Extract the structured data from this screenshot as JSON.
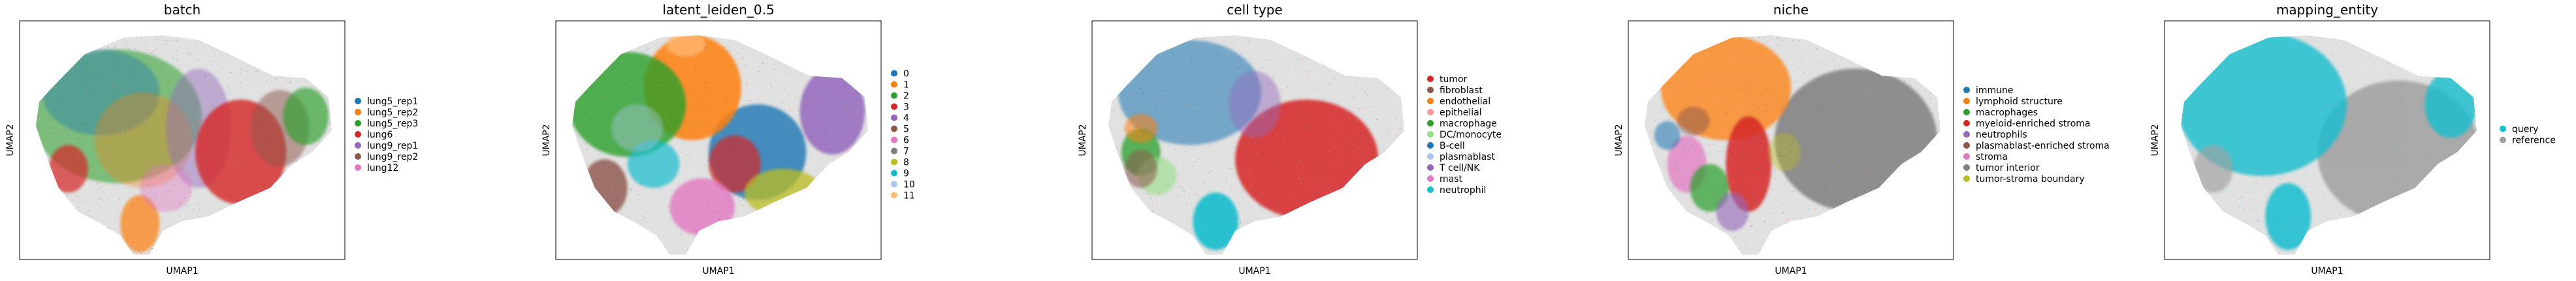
{
  "chart_data": [
    {
      "type": "scatter",
      "title": "batch",
      "xlabel": "UMAP1",
      "ylabel": "UMAP2",
      "grid": false,
      "legend_placement": "right",
      "series": [
        {
          "name": "lung5_rep1",
          "color": "#1f77b4"
        },
        {
          "name": "lung5_rep2",
          "color": "#ff7f0e"
        },
        {
          "name": "lung5_rep3",
          "color": "#2ca02c"
        },
        {
          "name": "lung6",
          "color": "#d62728"
        },
        {
          "name": "lung9_rep1",
          "color": "#9467bd"
        },
        {
          "name": "lung9_rep2",
          "color": "#8c564b"
        },
        {
          "name": "lung12",
          "color": "#e377c2"
        }
      ]
    },
    {
      "type": "scatter",
      "title": "latent_leiden_0.5",
      "xlabel": "UMAP1",
      "ylabel": "UMAP2",
      "grid": false,
      "legend_placement": "right",
      "series": [
        {
          "name": "0",
          "color": "#1f77b4"
        },
        {
          "name": "1",
          "color": "#ff7f0e"
        },
        {
          "name": "2",
          "color": "#2ca02c"
        },
        {
          "name": "3",
          "color": "#d62728"
        },
        {
          "name": "4",
          "color": "#9467bd"
        },
        {
          "name": "5",
          "color": "#8c564b"
        },
        {
          "name": "6",
          "color": "#e377c2"
        },
        {
          "name": "7",
          "color": "#7f7f7f"
        },
        {
          "name": "8",
          "color": "#bcbd22"
        },
        {
          "name": "9",
          "color": "#17becf"
        },
        {
          "name": "10",
          "color": "#aec7e8"
        },
        {
          "name": "11",
          "color": "#ffbb78"
        }
      ]
    },
    {
      "type": "scatter",
      "title": "cell type",
      "xlabel": "UMAP1",
      "ylabel": "UMAP2",
      "grid": false,
      "legend_placement": "right",
      "series": [
        {
          "name": "tumor",
          "color": "#d62728"
        },
        {
          "name": "fibroblast",
          "color": "#8c564b"
        },
        {
          "name": "endothelial",
          "color": "#ff7f0e"
        },
        {
          "name": "epithelial",
          "color": "#ff9896"
        },
        {
          "name": "macrophage",
          "color": "#2ca02c"
        },
        {
          "name": "DC/monocyte",
          "color": "#98df8a"
        },
        {
          "name": "B-cell",
          "color": "#1f77b4"
        },
        {
          "name": "plasmablast",
          "color": "#aec7e8"
        },
        {
          "name": "T cell/NK",
          "color": "#9467bd"
        },
        {
          "name": "mast",
          "color": "#e377c2"
        },
        {
          "name": "neutrophil",
          "color": "#17becf"
        }
      ]
    },
    {
      "type": "scatter",
      "title": "niche",
      "xlabel": "UMAP1",
      "ylabel": "UMAP2",
      "grid": false,
      "legend_placement": "right",
      "series": [
        {
          "name": "immune",
          "color": "#1f77b4"
        },
        {
          "name": "lymphoid structure",
          "color": "#ff7f0e"
        },
        {
          "name": "macrophages",
          "color": "#2ca02c"
        },
        {
          "name": "myeloid-enriched stroma",
          "color": "#d62728"
        },
        {
          "name": "neutrophils",
          "color": "#9467bd"
        },
        {
          "name": "plasmablast-enriched stroma",
          "color": "#8c564b"
        },
        {
          "name": "stroma",
          "color": "#e377c2"
        },
        {
          "name": "tumor interior",
          "color": "#7f7f7f"
        },
        {
          "name": "tumor-stroma boundary",
          "color": "#bcbd22"
        }
      ]
    },
    {
      "type": "scatter",
      "title": "mapping_entity",
      "xlabel": "UMAP1",
      "ylabel": "UMAP2",
      "grid": false,
      "legend_placement": "right",
      "series": [
        {
          "name": "query",
          "color": "#17becf"
        },
        {
          "name": "reference",
          "color": "#a0a0a0"
        }
      ]
    }
  ]
}
